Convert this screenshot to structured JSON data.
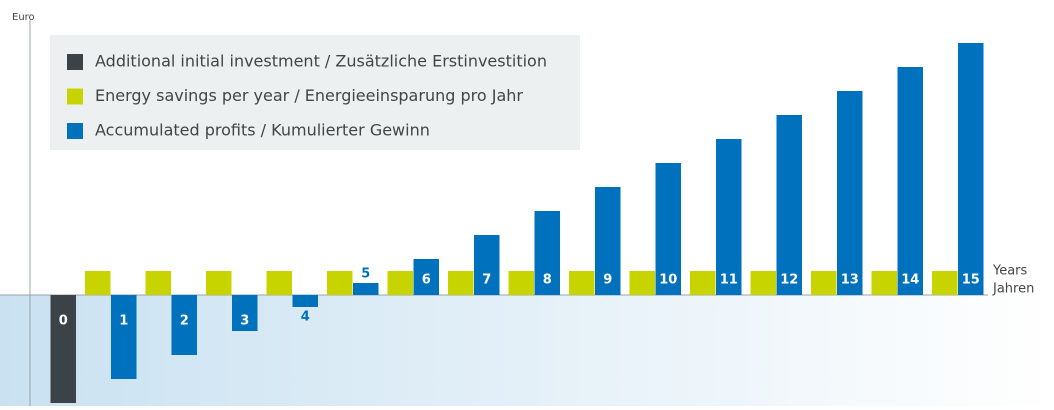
{
  "chart_data": {
    "type": "bar",
    "y_label": "Euro",
    "x_label": [
      "Years",
      "Jahren"
    ],
    "categories": [
      "0",
      "1",
      "2",
      "3",
      "4",
      "5",
      "6",
      "7",
      "8",
      "9",
      "10",
      "11",
      "12",
      "13",
      "14",
      "15"
    ],
    "series": [
      {
        "name": "Additional initial investment / Zusätzliche Erstinvestition",
        "color": "#3b4248",
        "values": [
          -108,
          null,
          null,
          null,
          null,
          null,
          null,
          null,
          null,
          null,
          null,
          null,
          null,
          null,
          null,
          null
        ]
      },
      {
        "name": "Energy savings per year / Energieeinsparung pro Jahr",
        "color": "#c8d400",
        "values": [
          null,
          24,
          24,
          24,
          24,
          24,
          24,
          24,
          24,
          24,
          24,
          24,
          24,
          24,
          24,
          24
        ]
      },
      {
        "name": "Accumulated profits / Kumulierter Gewinn",
        "color": "#0071bd",
        "values": [
          null,
          -84,
          -60,
          -36,
          -12,
          12,
          36,
          60,
          84,
          108,
          132,
          156,
          180,
          204,
          228,
          252
        ]
      }
    ],
    "ylim": [
      -111,
      285
    ],
    "legend": "upper left"
  }
}
